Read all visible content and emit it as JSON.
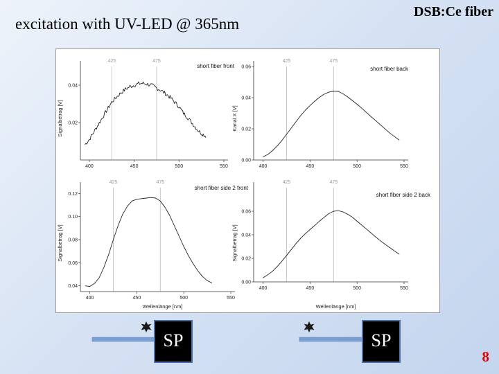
{
  "slide": {
    "title": "excitation with UV-LED @ 365nm",
    "tag": "DSB:Ce fiber",
    "page_number": "8"
  },
  "diagram": {
    "labels": [
      "SP",
      "SP"
    ]
  },
  "chart_data": [
    {
      "type": "line",
      "title": "short fiber front",
      "ylabel": "Signalbetrag [V]",
      "xlabel": "",
      "xlim": [
        390,
        550
      ],
      "ylim": [
        0.0,
        0.05
      ],
      "yticks": [
        0.02,
        0.04
      ],
      "ytick_labels": [
        "0.02",
        "0.04"
      ],
      "xticks": [
        400,
        450,
        500,
        550
      ],
      "xtick_labels": [
        "400",
        "450",
        "500",
        "550"
      ],
      "markers": [
        425,
        475
      ],
      "marker_labels": [
        "425",
        "475"
      ],
      "noisy": true,
      "x": [
        395,
        400,
        405,
        410,
        415,
        420,
        425,
        430,
        435,
        440,
        445,
        450,
        455,
        460,
        465,
        470,
        475,
        480,
        485,
        490,
        495,
        500,
        505,
        510,
        515,
        520,
        525,
        530
      ],
      "y": [
        0.0082,
        0.011,
        0.015,
        0.019,
        0.023,
        0.027,
        0.031,
        0.0335,
        0.0358,
        0.0378,
        0.0392,
        0.04,
        0.0408,
        0.041,
        0.0405,
        0.0398,
        0.0385,
        0.0372,
        0.0355,
        0.0335,
        0.031,
        0.0285,
        0.025,
        0.0225,
        0.0195,
        0.0165,
        0.0142,
        0.0128
      ]
    },
    {
      "type": "line",
      "title": "short fiber back",
      "ylabel": "Kanal X [V]",
      "xlabel": "",
      "xlim": [
        390,
        550
      ],
      "ylim": [
        0.0,
        0.06
      ],
      "yticks": [
        0.0,
        0.02,
        0.04,
        0.06
      ],
      "ytick_labels": [
        "0.00",
        "0.02",
        "0.04",
        "0.06"
      ],
      "xticks": [
        400,
        450,
        500,
        550
      ],
      "xtick_labels": [
        "400",
        "450",
        "500",
        "550"
      ],
      "markers": [
        425,
        475
      ],
      "marker_labels": [
        "425",
        "475"
      ],
      "noisy": false,
      "x": [
        400,
        405,
        410,
        415,
        420,
        425,
        430,
        435,
        440,
        445,
        450,
        455,
        460,
        465,
        470,
        475,
        480,
        485,
        490,
        495,
        500,
        505,
        510,
        515,
        520,
        525,
        530,
        535,
        540,
        545
      ],
      "y": [
        0.002,
        0.0035,
        0.006,
        0.009,
        0.0125,
        0.0165,
        0.0205,
        0.0245,
        0.0285,
        0.032,
        0.035,
        0.0378,
        0.0402,
        0.0422,
        0.0435,
        0.0442,
        0.044,
        0.0425,
        0.0405,
        0.0382,
        0.0358,
        0.0332,
        0.0305,
        0.0278,
        0.0252,
        0.0225,
        0.0198,
        0.0172,
        0.015,
        0.0128
      ]
    },
    {
      "type": "line",
      "title": "short fiber side 2 front",
      "ylabel": "Signalbetrag [V]",
      "xlabel": "Wellenlänge [nm]",
      "xlim": [
        390,
        550
      ],
      "ylim": [
        0.035,
        0.125
      ],
      "yticks": [
        0.04,
        0.06,
        0.08,
        0.1,
        0.12
      ],
      "ytick_labels": [
        "0.04",
        "0.06",
        "0.08",
        "0.10",
        "0.12"
      ],
      "xticks": [
        400,
        450,
        500,
        550
      ],
      "xtick_labels": [
        "400",
        "450",
        "500",
        "550"
      ],
      "markers": [
        425,
        475
      ],
      "marker_labels": [
        "425",
        "475"
      ],
      "noisy": false,
      "x": [
        395,
        400,
        405,
        410,
        415,
        420,
        425,
        430,
        435,
        440,
        445,
        450,
        455,
        460,
        465,
        470,
        475,
        480,
        485,
        490,
        495,
        500,
        505,
        510,
        515,
        520,
        525,
        530
      ],
      "y": [
        0.04,
        0.0395,
        0.042,
        0.047,
        0.056,
        0.067,
        0.08,
        0.092,
        0.102,
        0.109,
        0.1135,
        0.115,
        0.1155,
        0.116,
        0.1165,
        0.116,
        0.1135,
        0.108,
        0.101,
        0.092,
        0.083,
        0.074,
        0.066,
        0.059,
        0.053,
        0.048,
        0.0445,
        0.0425
      ]
    },
    {
      "type": "line",
      "title": "short fiber side 2 back",
      "ylabel": "Signalbetrag [V]",
      "xlabel": "Wellenlänge [nm]",
      "xlim": [
        390,
        550
      ],
      "ylim": [
        0.0,
        0.08
      ],
      "yticks": [
        0.0,
        0.02,
        0.04,
        0.06
      ],
      "ytick_labels": [
        "0.00",
        "0.02",
        "0.04",
        "0.06"
      ],
      "xticks": [
        400,
        450,
        500,
        550
      ],
      "xtick_labels": [
        "400",
        "450",
        "500",
        "550"
      ],
      "markers": [
        425,
        475
      ],
      "marker_labels": [
        "425",
        "475"
      ],
      "noisy": false,
      "x": [
        400,
        405,
        410,
        415,
        420,
        425,
        430,
        435,
        440,
        445,
        450,
        455,
        460,
        465,
        470,
        475,
        480,
        485,
        490,
        495,
        500,
        505,
        510,
        515,
        520,
        525,
        530,
        535,
        540,
        545
      ],
      "y": [
        0.0035,
        0.006,
        0.009,
        0.013,
        0.0175,
        0.0225,
        0.0275,
        0.0325,
        0.037,
        0.041,
        0.0445,
        0.048,
        0.0515,
        0.0548,
        0.058,
        0.06,
        0.0605,
        0.0595,
        0.0575,
        0.055,
        0.0515,
        0.0482,
        0.0448,
        0.0415,
        0.038,
        0.0348,
        0.0318,
        0.029,
        0.0262,
        0.0235
      ]
    }
  ]
}
